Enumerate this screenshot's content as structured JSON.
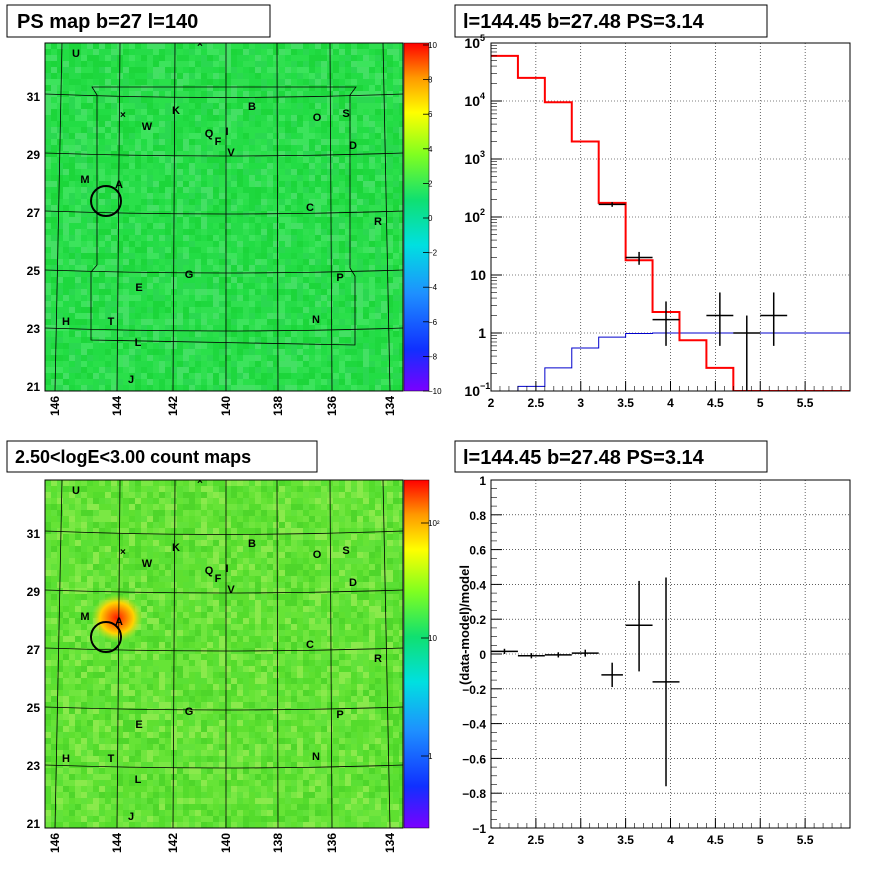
{
  "panels": {
    "ps_map": {
      "title": "PS map b=27 l=140",
      "x_ticks": [
        "146",
        "144",
        "142",
        "140",
        "138",
        "136",
        "134"
      ],
      "y_ticks": [
        "31",
        "29",
        "27",
        "25",
        "23",
        "21"
      ],
      "colorbar_ticks": [
        "10",
        "8",
        "6",
        "4",
        "2",
        "0",
        "−2",
        "−4",
        "−6",
        "−8",
        "−10"
      ]
    },
    "count_map": {
      "title": "2.50<logE<3.00 count maps",
      "x_ticks": [
        "146",
        "144",
        "142",
        "140",
        "138",
        "136",
        "134"
      ],
      "y_ticks": [
        "31",
        "29",
        "27",
        "25",
        "23",
        "21"
      ],
      "colorbar_ticks": [
        "10²",
        "10",
        "1"
      ]
    },
    "spectrum": {
      "title": "l=144.45 b=27.48 PS=3.14"
    },
    "residual": {
      "title": "l=144.45 b=27.48 PS=3.14",
      "ylabel": "(data-model)/model"
    }
  },
  "sources": [
    "U",
    "K",
    "B",
    "O",
    "S",
    "W",
    "Q",
    "F",
    "I",
    "V",
    "D",
    "M",
    "A",
    "C",
    "R",
    "G",
    "P",
    "E",
    "H",
    "T",
    "N",
    "L",
    "J"
  ],
  "chart_data": [
    {
      "type": "heatmap",
      "title": "PS map b=27 l=140",
      "xlabel": "",
      "ylabel": "",
      "xlim": [
        146.6,
        133.6
      ],
      "ylim": [
        20.9,
        32.7
      ],
      "colorbar_range": [
        -10,
        10
      ],
      "grid": true
    },
    {
      "type": "line",
      "title": "l=144.45 b=27.48 PS=3.14",
      "xlabel": "",
      "ylabel": "",
      "xlim": [
        2,
        6
      ],
      "ylim": [
        0.1,
        100000
      ],
      "y_scale": "log",
      "grid": true,
      "series": [
        {
          "name": "",
          "color": "#ff0000",
          "style": "step",
          "edges": [
            2,
            2.3,
            2.6,
            2.9,
            3.2,
            3.5,
            3.8,
            4.1,
            4.4,
            4.7,
            5.0,
            5.3,
            5.6,
            6.0
          ],
          "values": [
            60000,
            25000,
            9500,
            2000,
            175,
            18,
            2.3,
            0.75,
            0.25,
            0.1,
            0.1,
            0.1,
            0.1
          ]
        },
        {
          "name": "",
          "color": "#0000cc",
          "style": "step",
          "edges": [
            2,
            2.3,
            2.6,
            2.9,
            3.2,
            3.5,
            3.8,
            4.1,
            4.4,
            4.7,
            5.0,
            5.3,
            5.6,
            6.0
          ],
          "values": [
            0.1,
            0.12,
            0.25,
            0.55,
            0.85,
            0.98,
            1.0,
            1.0,
            1.0,
            1.0,
            1.0,
            1.0,
            1.0
          ]
        },
        {
          "name": "",
          "color": "#000000",
          "style": "points",
          "points": [
            {
              "x": 3.35,
              "y": 165,
              "lo": 150,
              "hi": 180,
              "dx": 0.15
            },
            {
              "x": 3.65,
              "y": 20,
              "lo": 15,
              "hi": 25,
              "dx": 0.15
            },
            {
              "x": 3.95,
              "y": 1.7,
              "lo": 0.6,
              "hi": 3.5,
              "dx": 0.15
            },
            {
              "x": 4.55,
              "y": 2.0,
              "lo": 0.6,
              "hi": 5.0,
              "dx": 0.15
            },
            {
              "x": 4.85,
              "y": 1.0,
              "lo": 0.1,
              "hi": 2.0,
              "dx": 0.15
            },
            {
              "x": 5.15,
              "y": 2.0,
              "lo": 0.6,
              "hi": 5.0,
              "dx": 0.15
            }
          ]
        }
      ]
    },
    {
      "type": "heatmap",
      "title": "2.50<logE<3.00 count maps",
      "xlabel": "",
      "ylabel": "",
      "xlim": [
        146.6,
        133.6
      ],
      "ylim": [
        20.9,
        32.7
      ],
      "colorbar_scale": "log",
      "colorbar_range": [
        0.1,
        500
      ],
      "grid": true
    },
    {
      "type": "scatter",
      "title": "l=144.45 b=27.48 PS=3.14",
      "xlabel": "",
      "ylabel": "(data-model)/model",
      "xlim": [
        2,
        6
      ],
      "ylim": [
        -1,
        1
      ],
      "grid": true,
      "points": [
        {
          "x": 2.15,
          "y": 0.015,
          "lo": 0.0,
          "hi": 0.03,
          "dx": 0.15
        },
        {
          "x": 2.45,
          "y": -0.01,
          "lo": -0.025,
          "hi": 0.005,
          "dx": 0.15
        },
        {
          "x": 2.75,
          "y": -0.005,
          "lo": -0.02,
          "hi": 0.01,
          "dx": 0.15
        },
        {
          "x": 3.05,
          "y": 0.005,
          "lo": -0.015,
          "hi": 0.025,
          "dx": 0.15
        },
        {
          "x": 3.35,
          "y": -0.12,
          "lo": -0.19,
          "hi": -0.05,
          "dx": 0.12
        },
        {
          "x": 3.65,
          "y": 0.165,
          "lo": -0.1,
          "hi": 0.42,
          "dx": 0.15
        },
        {
          "x": 3.95,
          "y": -0.16,
          "lo": -0.76,
          "hi": 0.44,
          "dx": 0.15
        }
      ]
    }
  ]
}
